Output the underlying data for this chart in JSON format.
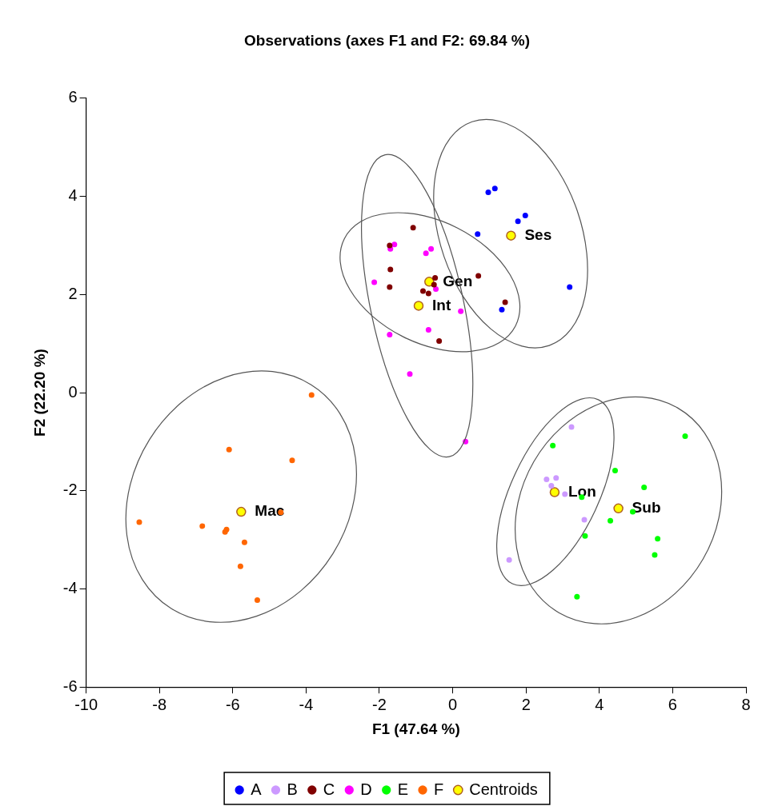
{
  "chart_data": {
    "type": "scatter",
    "title": "Observations (axes F1 and F2: 69.84 %)",
    "xlabel": "F1 (47.64 %)",
    "ylabel": "F2 (22.20 %)",
    "xlim": [
      -10,
      8
    ],
    "xticks": [
      -10,
      -8,
      -6,
      -4,
      -2,
      0,
      2,
      4,
      6,
      8
    ],
    "ylim": [
      -6,
      6
    ],
    "yticks": [
      -6,
      -4,
      -2,
      0,
      2,
      4,
      6
    ],
    "grid": false,
    "legend": "bottom",
    "marker": "circle",
    "series": [
      {
        "name": "A",
        "color": "#0000ff",
        "x": [
          0.97,
          1.15,
          1.78,
          1.98,
          0.68,
          3.19,
          1.34
        ],
        "values": [
          4.08,
          4.16,
          3.49,
          3.61,
          3.23,
          2.15,
          1.69
        ]
      },
      {
        "name": "B",
        "color": "#cc99ff",
        "x": [
          3.24,
          2.56,
          2.82,
          2.69,
          3.06,
          3.59,
          1.54
        ],
        "values": [
          -0.7,
          -1.77,
          -1.74,
          -1.9,
          -2.07,
          -2.59,
          -3.41
        ]
      },
      {
        "name": "C",
        "color": "#800000",
        "x": [
          -1.08,
          -1.72,
          -1.7,
          -1.72,
          -0.48,
          -0.51,
          -0.81,
          -0.66,
          0.7,
          1.43,
          -0.37
        ],
        "values": [
          3.36,
          3.0,
          2.51,
          2.15,
          2.34,
          2.2,
          2.07,
          2.02,
          2.38,
          1.84,
          1.05
        ]
      },
      {
        "name": "D",
        "color": "#ff00ff",
        "x": [
          -1.59,
          -1.7,
          -0.59,
          -0.73,
          -2.14,
          -0.46,
          0.22,
          -0.66,
          -1.72,
          -1.17,
          0.35
        ],
        "values": [
          3.02,
          2.93,
          2.93,
          2.84,
          2.25,
          2.11,
          1.66,
          1.28,
          1.18,
          0.38,
          -1.0
        ]
      },
      {
        "name": "E",
        "color": "#00ff00",
        "x": [
          2.73,
          6.34,
          4.43,
          5.22,
          3.52,
          4.91,
          4.3,
          3.61,
          5.59,
          5.51,
          3.39
        ],
        "values": [
          -1.08,
          -0.89,
          -1.59,
          -1.93,
          -2.13,
          -2.43,
          -2.61,
          -2.92,
          -2.98,
          -3.31,
          -4.16
        ]
      },
      {
        "name": "F",
        "color": "#ff6600",
        "x": [
          -3.85,
          -6.1,
          -4.38,
          -8.55,
          -6.83,
          -6.17,
          -6.21,
          -5.68,
          -5.79,
          -5.33,
          -4.69
        ],
        "values": [
          -0.05,
          -1.16,
          -1.38,
          -2.64,
          -2.72,
          -2.79,
          -2.84,
          -3.05,
          -3.54,
          -4.23,
          -2.44
        ]
      },
      {
        "name": "Centroids",
        "color": "#ffff00",
        "x": [
          1.59,
          -0.64,
          -0.93,
          2.78,
          4.52,
          -5.77
        ],
        "values": [
          3.2,
          2.26,
          1.77,
          -2.03,
          -2.36,
          -2.43
        ],
        "value_labels": [
          "Ses",
          "Gen",
          "Int",
          "Lon",
          "Sub",
          "Mac"
        ]
      }
    ]
  }
}
